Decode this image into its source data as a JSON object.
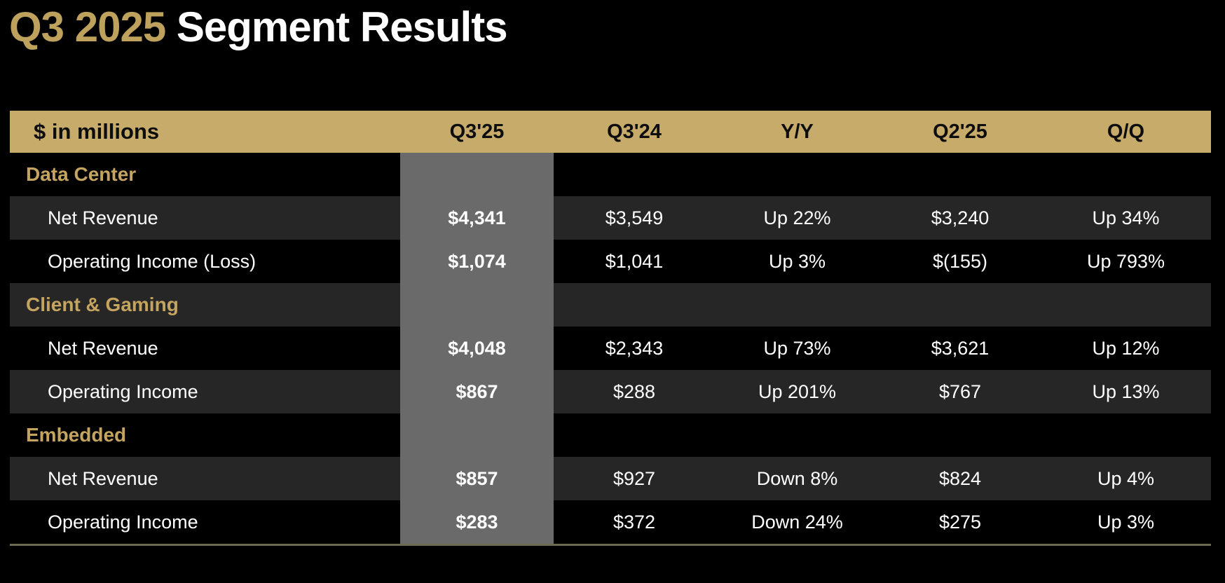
{
  "title": {
    "quarter": "Q3 2025",
    "rest": "Segment Results"
  },
  "colors": {
    "background": "#000000",
    "title_gold": "#bda15c",
    "header_band": "#c6ab6b",
    "header_text": "#0d0d0d",
    "section_gold_text": "#c4a45f",
    "highlight_column": "#6a6a6a",
    "alt_row": "#262626",
    "body_text": "#ffffff",
    "bottom_rule": "#6b6a52"
  },
  "chart_data": {
    "type": "table",
    "title": "Q3 2025 Segment Results",
    "unit_label": "$ in millions",
    "columns": [
      "Q3'25",
      "Q3'24",
      "Y/Y",
      "Q2'25",
      "Q/Q"
    ],
    "highlighted_column": "Q3'25",
    "rows": [
      {
        "kind": "section",
        "label": "Data Center"
      },
      {
        "kind": "item",
        "label": "Net Revenue",
        "q3_25": "$4,341",
        "q3_24": "$3,549",
        "yy": "Up 22%",
        "q2_25": "$3,240",
        "qq": "Up 34%"
      },
      {
        "kind": "item",
        "label": "Operating Income (Loss)",
        "q3_25": "$1,074",
        "q3_24": "$1,041",
        "yy": "Up 3%",
        "q2_25": "$(155)",
        "qq": "Up 793%"
      },
      {
        "kind": "section",
        "label": "Client & Gaming"
      },
      {
        "kind": "item",
        "label": "Net Revenue",
        "q3_25": "$4,048",
        "q3_24": "$2,343",
        "yy": "Up 73%",
        "q2_25": "$3,621",
        "qq": "Up 12%"
      },
      {
        "kind": "item",
        "label": "Operating Income",
        "q3_25": "$867",
        "q3_24": "$288",
        "yy": "Up 201%",
        "q2_25": "$767",
        "qq": "Up 13%"
      },
      {
        "kind": "section",
        "label": "Embedded"
      },
      {
        "kind": "item",
        "label": "Net Revenue",
        "q3_25": "$857",
        "q3_24": "$927",
        "yy": "Down 8%",
        "q2_25": "$824",
        "qq": "Up 4%"
      },
      {
        "kind": "item",
        "label": "Operating Income",
        "q3_25": "$283",
        "q3_24": "$372",
        "yy": "Down 24%",
        "q2_25": "$275",
        "qq": "Up 3%"
      }
    ]
  }
}
